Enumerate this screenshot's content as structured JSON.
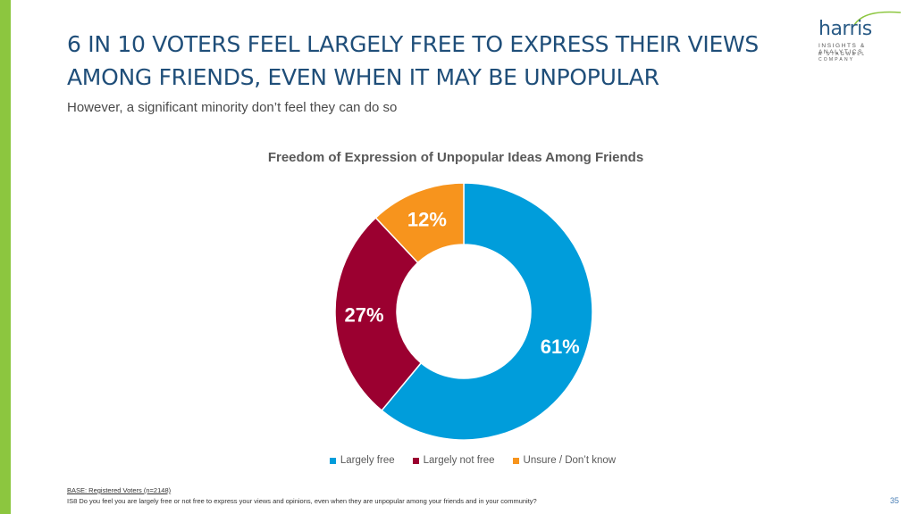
{
  "slide": {
    "title": "6 IN 10 VOTERS FEEL LARGELY FREE TO EXPRESS THEIR VIEWS AMONG FRIENDS, EVEN WHEN IT MAY BE UNPOPULAR",
    "subtitle": "However, a significant minority don’t feel they can do so",
    "base_note": "BASE: Registered Voters (n=2148)",
    "question_note": "IS8 Do you feel you are largely free or not free to express your views and opinions, even when they are unpopular among your friends and in your community?",
    "page_number": "35"
  },
  "logo": {
    "word": "harris",
    "tagline": "INSIGHTS & ANALYTICS",
    "subline": "A STAGWELL COMPANY"
  },
  "colors": {
    "accent_bar": "#8cc63f",
    "title": "#1f4e79"
  },
  "chart_data": {
    "type": "pie",
    "donut": true,
    "title": "Freedom of Expression of Unpopular Ideas Among Friends",
    "categories": [
      "Largely free",
      "Largely not free",
      "Unsure / Don’t know"
    ],
    "values": [
      61,
      27,
      12
    ],
    "labels": [
      "61%",
      "27%",
      "12%"
    ],
    "colors": [
      "#009ddb",
      "#9b0030",
      "#f7941d"
    ],
    "label_colors": [
      "#ffffff",
      "#ffffff",
      "#ffffff"
    ],
    "legend_position": "bottom"
  }
}
